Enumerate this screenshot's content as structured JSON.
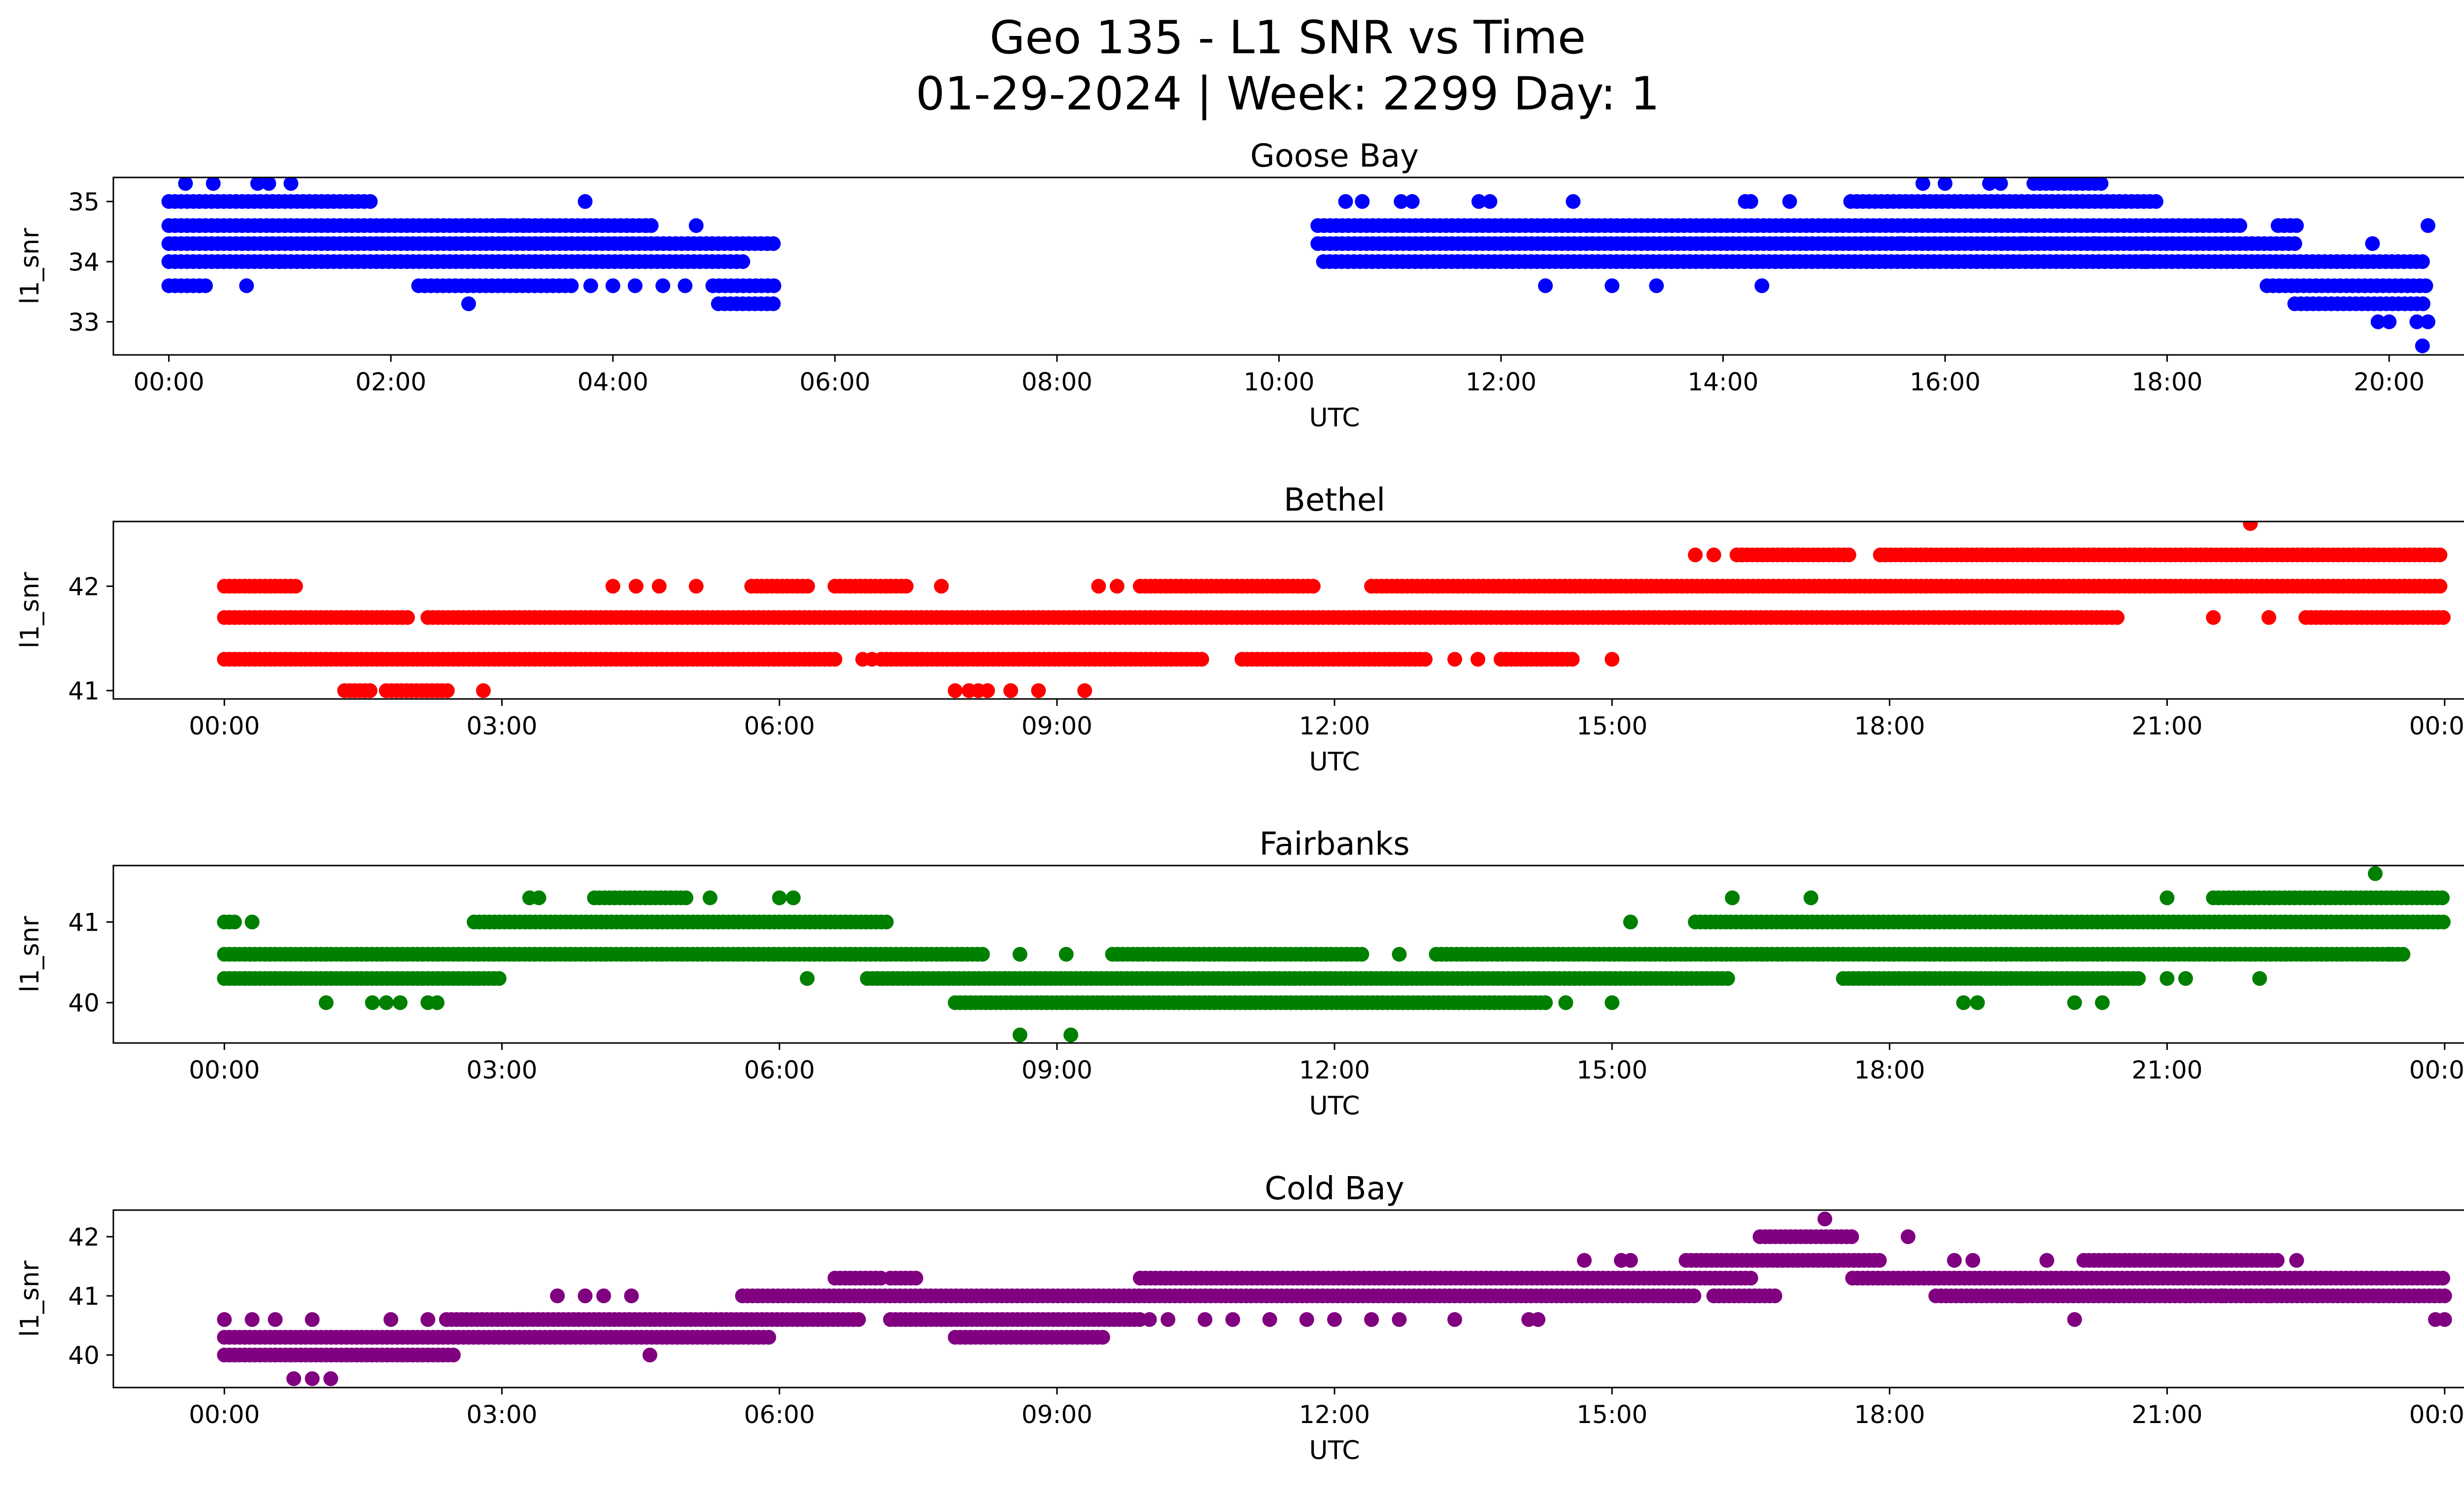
{
  "figure": {
    "title_line1": "Geo 135 - L1 SNR vs Time",
    "title_line2": "01-29-2024 | Week: 2299 Day: 1"
  },
  "chart_data": [
    {
      "type": "scatter",
      "title": "Goose Bay",
      "xlabel": "UTC",
      "ylabel": "l1_snr",
      "color": "#0000ff",
      "x_unit": "hours UTC",
      "xlim": [
        -0.5,
        21.5
      ],
      "ylim": [
        32.45,
        35.4
      ],
      "x_ticks": [
        0,
        2,
        4,
        6,
        8,
        10,
        12,
        14,
        16,
        18,
        20
      ],
      "x_tick_labels": [
        "00:00",
        "02:00",
        "04:00",
        "06:00",
        "08:00",
        "10:00",
        "12:00",
        "14:00",
        "16:00",
        "18:00",
        "20:00"
      ],
      "y_ticks": [
        33,
        34,
        35
      ],
      "y_tick_labels": [
        "33",
        "34",
        "35"
      ],
      "bands": [
        {
          "y": 35.0,
          "ranges": [
            [
              0.0,
              1.85
            ]
          ]
        },
        {
          "y": 34.6,
          "ranges": [
            [
              0.0,
              4.35
            ],
            [
              10.35,
              18.7
            ],
            [
              19.0,
              19.2
            ]
          ]
        },
        {
          "y": 34.3,
          "ranges": [
            [
              0.0,
              5.45
            ],
            [
              10.35,
              19.2
            ]
          ]
        },
        {
          "y": 34.0,
          "ranges": [
            [
              0.0,
              5.2
            ],
            [
              10.4,
              20.35
            ]
          ]
        },
        {
          "y": 33.6,
          "ranges": [
            [
              0.0,
              0.35
            ],
            [
              2.25,
              3.65
            ],
            [
              4.9,
              5.45
            ],
            [
              18.9,
              20.35
            ]
          ]
        },
        {
          "y": 33.3,
          "ranges": [
            [
              4.95,
              5.45
            ],
            [
              19.15,
              20.35
            ]
          ]
        },
        {
          "y": 35.0,
          "ranges": [
            [
              15.15,
              17.9
            ]
          ]
        },
        {
          "y": 35.3,
          "ranges": [
            [
              16.8,
              17.45
            ]
          ]
        }
      ],
      "points": [
        [
          0.15,
          35.3
        ],
        [
          0.4,
          35.3
        ],
        [
          0.8,
          35.3
        ],
        [
          0.9,
          35.3
        ],
        [
          1.1,
          35.3
        ],
        [
          0.7,
          33.6
        ],
        [
          1.0,
          34.0
        ],
        [
          2.7,
          33.3
        ],
        [
          2.7,
          34.6
        ],
        [
          3.0,
          34.6
        ],
        [
          3.2,
          34.6
        ],
        [
          3.75,
          35.0
        ],
        [
          3.8,
          33.6
        ],
        [
          4.0,
          33.6
        ],
        [
          4.2,
          33.6
        ],
        [
          4.3,
          34.6
        ],
        [
          4.45,
          33.6
        ],
        [
          4.65,
          33.6
        ],
        [
          4.75,
          34.6
        ],
        [
          12.4,
          33.6
        ],
        [
          13.0,
          33.6
        ],
        [
          13.4,
          33.6
        ],
        [
          14.35,
          33.6
        ],
        [
          10.6,
          35.0
        ],
        [
          10.75,
          35.0
        ],
        [
          11.1,
          35.0
        ],
        [
          11.2,
          35.0
        ],
        [
          11.8,
          35.0
        ],
        [
          11.9,
          35.0
        ],
        [
          12.65,
          35.0
        ],
        [
          14.2,
          35.0
        ],
        [
          14.25,
          35.0
        ],
        [
          14.6,
          35.0
        ],
        [
          15.8,
          35.3
        ],
        [
          16.0,
          35.3
        ],
        [
          16.4,
          35.3
        ],
        [
          16.5,
          35.3
        ],
        [
          15.35,
          34.3
        ],
        [
          15.6,
          34.3
        ],
        [
          16.7,
          34.3
        ],
        [
          17.35,
          34.3
        ],
        [
          17.8,
          34.0
        ],
        [
          19.9,
          33.0
        ],
        [
          20.0,
          33.0
        ],
        [
          20.25,
          33.0
        ],
        [
          20.35,
          33.0
        ],
        [
          19.85,
          34.3
        ],
        [
          20.35,
          34.6
        ],
        [
          20.3,
          32.6
        ]
      ]
    },
    {
      "type": "scatter",
      "title": "Bethel",
      "xlabel": "UTC",
      "ylabel": "l1_snr",
      "color": "#ff0000",
      "x_unit": "hours UTC",
      "xlim": [
        -1.2,
        25.2
      ],
      "ylim": [
        40.92,
        42.62
      ],
      "x_ticks": [
        0,
        3,
        6,
        9,
        12,
        15,
        18,
        21,
        24
      ],
      "x_tick_labels": [
        "00:00",
        "03:00",
        "06:00",
        "09:00",
        "12:00",
        "15:00",
        "18:00",
        "21:00",
        "00:00"
      ],
      "y_ticks": [
        41,
        42
      ],
      "y_tick_labels": [
        "41",
        "42"
      ],
      "bands": [
        {
          "y": 42.0,
          "ranges": [
            [
              0.0,
              0.8
            ],
            [
              5.7,
              6.35
            ],
            [
              6.6,
              7.4
            ],
            [
              9.9,
              11.8
            ],
            [
              12.4,
              24.0
            ]
          ]
        },
        {
          "y": 41.7,
          "ranges": [
            [
              0.0,
              2.0
            ],
            [
              2.2,
              20.5
            ],
            [
              22.5,
              24.0
            ]
          ]
        },
        {
          "y": 41.3,
          "ranges": [
            [
              0.0,
              6.6
            ],
            [
              7.1,
              10.6
            ],
            [
              11.0,
              13.0
            ],
            [
              13.8,
              14.6
            ]
          ]
        },
        {
          "y": 41.0,
          "ranges": [
            [
              1.3,
              1.6
            ],
            [
              1.75,
              2.45
            ]
          ]
        },
        {
          "y": 42.3,
          "ranges": [
            [
              16.35,
              17.6
            ],
            [
              17.9,
              24.0
            ]
          ]
        }
      ],
      "points": [
        [
          4.2,
          42.0
        ],
        [
          4.45,
          42.0
        ],
        [
          4.7,
          42.0
        ],
        [
          5.1,
          42.0
        ],
        [
          7.75,
          42.0
        ],
        [
          9.45,
          42.0
        ],
        [
          9.65,
          42.0
        ],
        [
          6.9,
          41.3
        ],
        [
          7.0,
          41.3
        ],
        [
          13.3,
          41.3
        ],
        [
          13.55,
          41.3
        ],
        [
          15.0,
          41.3
        ],
        [
          2.8,
          41.0
        ],
        [
          7.9,
          41.0
        ],
        [
          8.05,
          41.0
        ],
        [
          8.15,
          41.0
        ],
        [
          8.25,
          41.0
        ],
        [
          8.5,
          41.0
        ],
        [
          8.8,
          41.0
        ],
        [
          9.3,
          41.0
        ],
        [
          15.9,
          42.3
        ],
        [
          16.1,
          42.3
        ],
        [
          21.9,
          42.6
        ],
        [
          21.5,
          41.7
        ],
        [
          22.1,
          41.7
        ]
      ]
    },
    {
      "type": "scatter",
      "title": "Fairbanks",
      "xlabel": "UTC",
      "ylabel": "l1_snr",
      "color": "#008000",
      "x_unit": "hours UTC",
      "xlim": [
        -1.2,
        25.2
      ],
      "ylim": [
        39.5,
        41.7
      ],
      "x_ticks": [
        0,
        3,
        6,
        9,
        12,
        15,
        18,
        21,
        24
      ],
      "x_tick_labels": [
        "00:00",
        "03:00",
        "06:00",
        "09:00",
        "12:00",
        "15:00",
        "18:00",
        "21:00",
        "00:00"
      ],
      "y_ticks": [
        40,
        41
      ],
      "y_tick_labels": [
        "40",
        "41"
      ],
      "bands": [
        {
          "y": 41.0,
          "ranges": [
            [
              0.0,
              0.15
            ],
            [
              2.7,
              7.2
            ],
            [
              15.9,
              24.0
            ]
          ]
        },
        {
          "y": 40.6,
          "ranges": [
            [
              0.0,
              8.2
            ],
            [
              9.6,
              12.3
            ],
            [
              13.1,
              23.6
            ]
          ]
        },
        {
          "y": 40.3,
          "ranges": [
            [
              0.0,
              3.0
            ],
            [
              6.95,
              16.2
            ],
            [
              17.5,
              20.7
            ]
          ]
        },
        {
          "y": 40.0,
          "ranges": [
            [
              7.9,
              14.3
            ]
          ]
        },
        {
          "y": 41.3,
          "ranges": [
            [
              4.0,
              5.0
            ],
            [
              21.5,
              24.0
            ]
          ]
        }
      ],
      "points": [
        [
          0.3,
          41.0
        ],
        [
          1.1,
          40.0
        ],
        [
          1.6,
          40.0
        ],
        [
          1.75,
          40.0
        ],
        [
          1.9,
          40.0
        ],
        [
          2.2,
          40.0
        ],
        [
          2.3,
          40.0
        ],
        [
          3.3,
          41.3
        ],
        [
          3.4,
          41.3
        ],
        [
          5.25,
          41.3
        ],
        [
          6.0,
          41.3
        ],
        [
          6.15,
          41.3
        ],
        [
          6.3,
          40.3
        ],
        [
          8.6,
          40.6
        ],
        [
          9.1,
          40.6
        ],
        [
          8.6,
          39.6
        ],
        [
          9.15,
          39.6
        ],
        [
          12.7,
          40.6
        ],
        [
          14.5,
          40.0
        ],
        [
          15.0,
          40.0
        ],
        [
          15.2,
          41.0
        ],
        [
          16.3,
          41.3
        ],
        [
          17.15,
          41.3
        ],
        [
          18.8,
          40.0
        ],
        [
          18.95,
          40.0
        ],
        [
          20.0,
          40.0
        ],
        [
          20.3,
          40.0
        ],
        [
          21.0,
          40.3
        ],
        [
          21.2,
          40.3
        ],
        [
          21.0,
          41.3
        ],
        [
          22.0,
          40.3
        ],
        [
          23.4,
          40.6
        ],
        [
          23.25,
          41.6
        ],
        [
          16.25,
          40.3
        ]
      ]
    },
    {
      "type": "scatter",
      "title": "Cold Bay",
      "xlabel": "UTC",
      "ylabel": "l1_snr",
      "color": "#800080",
      "x_unit": "hours UTC",
      "xlim": [
        -1.2,
        25.2
      ],
      "ylim": [
        39.45,
        42.45
      ],
      "x_ticks": [
        0,
        3,
        6,
        9,
        12,
        15,
        18,
        21,
        24
      ],
      "x_tick_labels": [
        "00:00",
        "03:00",
        "06:00",
        "09:00",
        "12:00",
        "15:00",
        "18:00",
        "21:00",
        "00:00"
      ],
      "y_ticks": [
        40,
        41,
        42
      ],
      "y_tick_labels": [
        "40",
        "41",
        "42"
      ],
      "bands": [
        {
          "y": 40.6,
          "ranges": [
            [
              2.4,
              6.9
            ],
            [
              7.2,
              9.9
            ]
          ]
        },
        {
          "y": 40.3,
          "ranges": [
            [
              0.0,
              5.9
            ],
            [
              7.9,
              9.5
            ]
          ]
        },
        {
          "y": 40.0,
          "ranges": [
            [
              0.0,
              2.5
            ]
          ]
        },
        {
          "y": 41.0,
          "ranges": [
            [
              5.6,
              15.9
            ],
            [
              16.1,
              16.8
            ],
            [
              18.5,
              24.0
            ]
          ]
        },
        {
          "y": 41.3,
          "ranges": [
            [
              6.6,
              7.1
            ],
            [
              7.2,
              7.5
            ],
            [
              9.9,
              16.5
            ],
            [
              17.6,
              24.0
            ]
          ]
        },
        {
          "y": 41.6,
          "ranges": [
            [
              15.8,
              17.9
            ],
            [
              20.1,
              22.2
            ]
          ]
        },
        {
          "y": 42.0,
          "ranges": [
            [
              16.6,
              17.6
            ]
          ]
        }
      ],
      "points": [
        [
          0.0,
          40.6
        ],
        [
          0.3,
          40.6
        ],
        [
          0.55,
          40.6
        ],
        [
          0.95,
          40.6
        ],
        [
          1.8,
          40.6
        ],
        [
          2.2,
          40.6
        ],
        [
          0.75,
          39.6
        ],
        [
          0.95,
          39.6
        ],
        [
          1.15,
          39.6
        ],
        [
          3.6,
          41.0
        ],
        [
          3.9,
          41.0
        ],
        [
          4.1,
          41.0
        ],
        [
          4.4,
          41.0
        ],
        [
          4.6,
          40.0
        ],
        [
          10.0,
          40.6
        ],
        [
          10.2,
          40.6
        ],
        [
          10.6,
          40.6
        ],
        [
          10.9,
          40.6
        ],
        [
          11.3,
          40.6
        ],
        [
          11.7,
          40.6
        ],
        [
          12.0,
          40.6
        ],
        [
          12.4,
          40.6
        ],
        [
          12.7,
          40.6
        ],
        [
          13.3,
          40.6
        ],
        [
          14.1,
          40.6
        ],
        [
          14.2,
          40.6
        ],
        [
          14.7,
          41.6
        ],
        [
          15.1,
          41.6
        ],
        [
          15.2,
          41.6
        ],
        [
          16.1,
          41.0
        ],
        [
          17.3,
          42.3
        ],
        [
          18.2,
          42.0
        ],
        [
          18.7,
          41.6
        ],
        [
          18.9,
          41.6
        ],
        [
          19.7,
          41.6
        ],
        [
          20.0,
          40.6
        ],
        [
          22.4,
          41.6
        ],
        [
          21.2,
          41.0
        ],
        [
          21.6,
          41.0
        ],
        [
          21.9,
          41.0
        ],
        [
          22.1,
          41.0
        ],
        [
          23.9,
          40.6
        ],
        [
          24.0,
          40.6
        ],
        [
          19.4,
          41.0
        ]
      ]
    }
  ]
}
